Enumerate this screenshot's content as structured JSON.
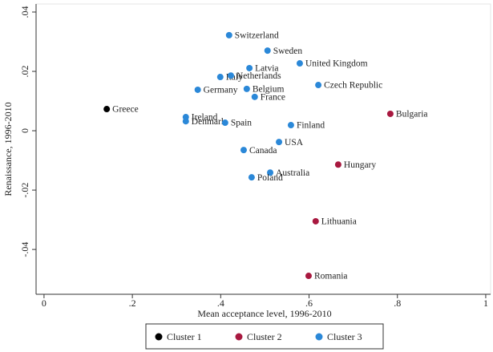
{
  "chart_data": {
    "type": "scatter",
    "x_label": "Mean acceptance level, 1996-2010",
    "y_label": "Renaissance, 1996-2010",
    "xlim": [
      -0.018,
      1.011
    ],
    "ylim": [
      -0.0551,
      0.0427
    ],
    "xticks": [
      0,
      {
        "value": 0.2,
        "label": ".2"
      },
      {
        "value": 0.4,
        "label": ".4"
      },
      {
        "value": 0.6,
        "label": ".6"
      },
      {
        "value": 0.8,
        "label": ".8"
      },
      1
    ],
    "yticks": [
      {
        "value": -0.04,
        "label": "-.04"
      },
      {
        "value": -0.02,
        "label": "-.02"
      },
      0,
      {
        "value": 0.02,
        "label": ".02"
      },
      {
        "value": 0.04,
        "label": ".04"
      }
    ],
    "legend": "bottom",
    "series": [
      {
        "name": "Cluster 1",
        "color": "#000000",
        "labels": [
          "Greece"
        ],
        "x": [
          0.142
        ],
        "values": [
          0.0073
        ]
      },
      {
        "name": "Cluster 2",
        "color": "#a8183f",
        "labels": [
          "Bulgaria",
          "Hungary",
          "Lithuania",
          "Romania"
        ],
        "x": [
          0.784,
          0.666,
          0.615,
          0.599
        ],
        "values": [
          0.0057,
          -0.0114,
          -0.0305,
          -0.0489
        ]
      },
      {
        "name": "Cluster 3",
        "color": "#2b88d8",
        "labels": [
          "Switzerland",
          "Sweden",
          "Latvia",
          "United Kingdom",
          "Italy",
          "Netherlands",
          "Belgium",
          "Germany",
          "France",
          "Czech Republic",
          "Ireland",
          "Denmark",
          "Spain",
          "Finland",
          "USA",
          "Canada",
          "Australia",
          "Poland"
        ],
        "x": [
          0.419,
          0.506,
          0.465,
          0.579,
          0.399,
          0.423,
          0.459,
          0.348,
          0.477,
          0.621,
          0.321,
          0.321,
          0.41,
          0.559,
          0.532,
          0.452,
          0.512,
          0.47
        ],
        "values": [
          0.0322,
          0.027,
          0.0211,
          0.0227,
          0.0181,
          0.0186,
          0.0141,
          0.0138,
          0.0114,
          0.0154,
          0.0046,
          0.0032,
          0.0027,
          0.0019,
          -0.0038,
          -0.0065,
          -0.0141,
          -0.0157
        ]
      }
    ]
  }
}
